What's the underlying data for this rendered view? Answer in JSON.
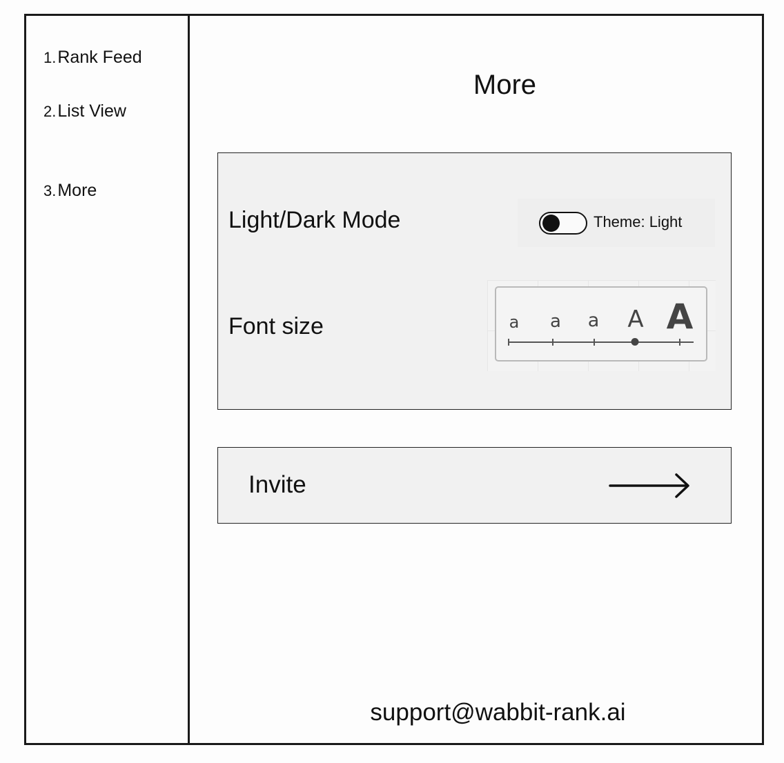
{
  "sidebar": {
    "items": [
      {
        "number": "1.",
        "label": "Rank Feed"
      },
      {
        "number": "2.",
        "label": "List View"
      },
      {
        "number": "3.",
        "label": "More"
      }
    ]
  },
  "main": {
    "title": "More",
    "settings": {
      "theme_label": "Light/Dark Mode",
      "theme_toggle_text": "Theme: Light",
      "theme_value": "Light",
      "font_label": "Font size",
      "font_sizes": [
        "a",
        "a",
        "a",
        "A",
        "A"
      ],
      "font_size_selected_index": 3
    },
    "invite": {
      "label": "Invite",
      "icon": "arrow-right-icon"
    },
    "support_email": "support@wabbit-rank.ai"
  }
}
